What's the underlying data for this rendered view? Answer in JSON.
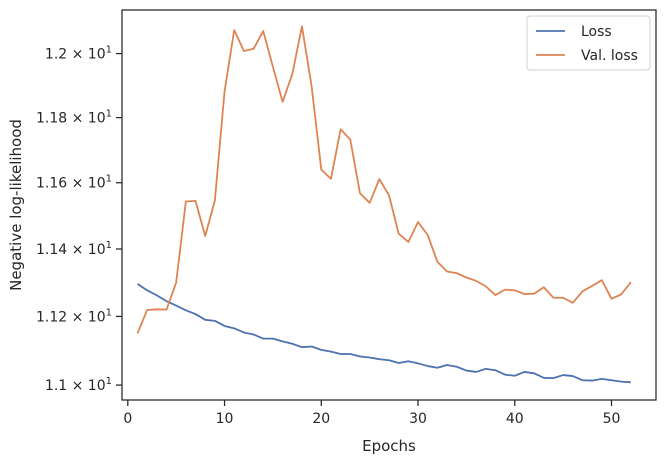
{
  "chart_data": {
    "type": "line",
    "title": "",
    "xlabel": "Epochs",
    "ylabel": "Negative log-likelihood",
    "y_scale": "log",
    "xlim": [
      -0.6,
      54.6
    ],
    "ylim": [
      10.957,
      12.138
    ],
    "x_ticks": [
      0,
      10,
      20,
      30,
      40,
      50
    ],
    "x_tick_labels": [
      "0",
      "10",
      "20",
      "30",
      "40",
      "50"
    ],
    "y_ticks": [
      11.0,
      11.2,
      11.4,
      11.6,
      11.8,
      12.0
    ],
    "y_tick_labels": [
      {
        "mantissa": "1.1 × 10",
        "exp": "1"
      },
      {
        "mantissa": "1.12 × 10",
        "exp": "1"
      },
      {
        "mantissa": "1.14 × 10",
        "exp": "1"
      },
      {
        "mantissa": "1.16 × 10",
        "exp": "1"
      },
      {
        "mantissa": "1.18 × 10",
        "exp": "1"
      },
      {
        "mantissa": "1.2 × 10",
        "exp": "1"
      }
    ],
    "grid": false,
    "legend_position": "top-right",
    "x": [
      1,
      2,
      3,
      4,
      5,
      6,
      7,
      8,
      9,
      10,
      11,
      12,
      13,
      14,
      15,
      16,
      17,
      18,
      19,
      20,
      21,
      22,
      23,
      24,
      25,
      26,
      27,
      28,
      29,
      30,
      31,
      32,
      33,
      34,
      35,
      36,
      37,
      38,
      39,
      40,
      41,
      42,
      43,
      44,
      45,
      46,
      47,
      48,
      49,
      50,
      51,
      52
    ],
    "series": [
      {
        "name": "Loss",
        "color": "#4c72b0",
        "values": [
          11.296,
          11.277,
          11.262,
          11.245,
          11.232,
          11.218,
          11.207,
          11.19,
          11.187,
          11.172,
          11.165,
          11.153,
          11.147,
          11.135,
          11.135,
          11.127,
          11.12,
          11.11,
          11.112,
          11.102,
          11.097,
          11.09,
          11.09,
          11.083,
          11.08,
          11.075,
          11.072,
          11.064,
          11.069,
          11.063,
          11.055,
          11.05,
          11.058,
          11.053,
          11.042,
          11.038,
          11.047,
          11.043,
          11.03,
          11.027,
          11.038,
          11.034,
          11.021,
          11.02,
          11.029,
          11.026,
          11.014,
          11.013,
          11.018,
          11.014,
          11.01,
          11.008
        ]
      },
      {
        "name": "Val. loss",
        "color": "#dd8452",
        "values": [
          11.15,
          11.219,
          11.221,
          11.22,
          11.3,
          11.543,
          11.545,
          11.439,
          11.546,
          11.881,
          12.074,
          12.008,
          12.015,
          12.071,
          11.958,
          11.849,
          11.935,
          12.086,
          11.898,
          11.64,
          11.612,
          11.764,
          11.732,
          11.568,
          11.539,
          11.611,
          11.562,
          11.446,
          11.421,
          11.481,
          11.442,
          11.362,
          11.333,
          11.328,
          11.315,
          11.305,
          11.289,
          11.263,
          11.279,
          11.277,
          11.266,
          11.267,
          11.286,
          11.255,
          11.255,
          11.24,
          11.274,
          11.29,
          11.307,
          11.252,
          11.265,
          11.301
        ]
      }
    ]
  }
}
